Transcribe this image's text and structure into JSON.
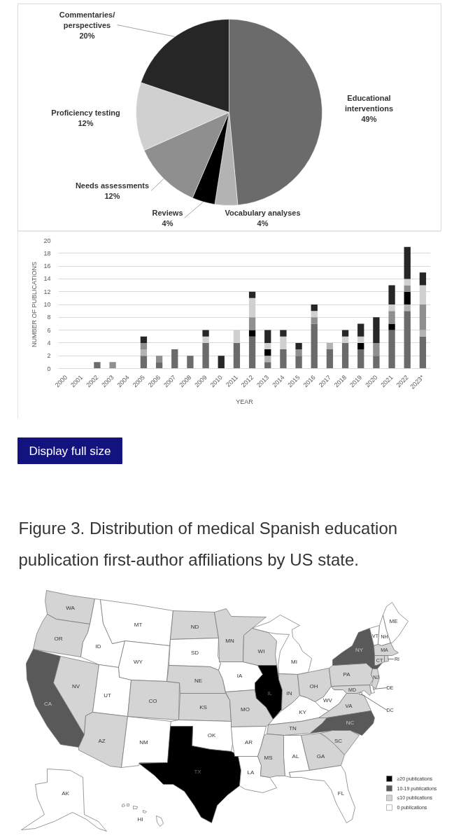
{
  "chart_data": [
    {
      "type": "pie",
      "categories": [
        "Educational interventions",
        "Vocabulary analyses",
        "Reviews",
        "Needs assessments",
        "Proficiency testing",
        "Commentaries/perspectives"
      ],
      "values": [
        49,
        4,
        4,
        12,
        12,
        20
      ],
      "colors": [
        "#6b6b6b",
        "#b3b3b3",
        "#000000",
        "#8f8f8f",
        "#d0d0d0",
        "#262626"
      ],
      "value_labels": [
        "49%",
        "4%",
        "4%",
        "12%",
        "12%",
        "20%"
      ]
    },
    {
      "type": "bar",
      "stacked": true,
      "categories": [
        "2000",
        "2001",
        "2002",
        "2003",
        "2004",
        "2005",
        "2006",
        "2007",
        "2008",
        "2009",
        "2010",
        "2011",
        "2012",
        "2013",
        "2014",
        "2015",
        "2016",
        "2017",
        "2018",
        "2019",
        "2020",
        "2021",
        "2022",
        "2023*"
      ],
      "series": [
        {
          "color": "#6b6b6b",
          "values": [
            0,
            0,
            1,
            0,
            0,
            2,
            1,
            3,
            2,
            4,
            0,
            4,
            5,
            1,
            3,
            2,
            7,
            3,
            4,
            3,
            2,
            6,
            9,
            5
          ]
        },
        {
          "color": "#b3b3b3",
          "values": [
            0,
            0,
            0,
            0,
            0,
            1,
            0,
            0,
            0,
            0,
            0,
            0,
            0,
            1,
            0,
            0,
            0,
            1,
            0,
            0,
            0,
            0,
            1,
            1
          ]
        },
        {
          "color": "#000000",
          "values": [
            0,
            0,
            0,
            0,
            0,
            0,
            0,
            0,
            0,
            0,
            0,
            0,
            1,
            1,
            0,
            0,
            0,
            0,
            0,
            1,
            0,
            1,
            2,
            0
          ]
        },
        {
          "color": "#8f8f8f",
          "values": [
            0,
            0,
            0,
            1,
            0,
            1,
            1,
            0,
            0,
            0,
            0,
            0,
            2,
            0,
            0,
            1,
            1,
            0,
            0,
            0,
            2,
            2,
            1,
            4
          ]
        },
        {
          "color": "#d0d0d0",
          "values": [
            0,
            0,
            0,
            0,
            0,
            0,
            0,
            0,
            0,
            1,
            0,
            2,
            3,
            1,
            2,
            0,
            1,
            0,
            1,
            1,
            0,
            1,
            1,
            3
          ]
        },
        {
          "color": "#262626",
          "values": [
            0,
            0,
            0,
            0,
            0,
            1,
            0,
            0,
            0,
            1,
            2,
            0,
            1,
            2,
            1,
            1,
            1,
            0,
            1,
            2,
            4,
            3,
            5,
            2
          ]
        }
      ],
      "ylim": [
        0,
        20
      ],
      "yticks": [
        0,
        2,
        4,
        6,
        8,
        10,
        12,
        14,
        16,
        18,
        20
      ],
      "xlabel": "YEAR",
      "ylabel": "NUMBER OF PUBLICATIONS",
      "grid": "y",
      "annotations": [
        "Display full size"
      ]
    },
    {
      "type": "other",
      "title": "Figure 3. Distribution of medical Spanish education publication first-author affiliations by US state.",
      "categories": [
        "WA",
        "OR",
        "CA",
        "NV",
        "ID",
        "MT",
        "WY",
        "UT",
        "AZ",
        "NM",
        "CO",
        "ND",
        "SD",
        "NE",
        "KS",
        "OK",
        "TX",
        "MN",
        "IA",
        "MO",
        "AR",
        "LA",
        "WI",
        "IL",
        "MI",
        "IN",
        "KY",
        "TN",
        "MS",
        "AL",
        "OH",
        "WV",
        "VA",
        "NC",
        "SC",
        "GA",
        "FL",
        "PA",
        "NY",
        "NJ",
        "DE",
        "MD",
        "DC",
        "VT",
        "NH",
        "ME",
        "MA",
        "CT",
        "RI",
        "AK",
        "HI"
      ],
      "colors": [
        "#d4d4d4",
        "#d4d4d4",
        "#595959",
        "#d4d4d4",
        "#ffffff",
        "#ffffff",
        "#ffffff",
        "#ffffff",
        "#d4d4d4",
        "#ffffff",
        "#d4d4d4",
        "#d4d4d4",
        "#ffffff",
        "#d4d4d4",
        "#d4d4d4",
        "#ffffff",
        "#000000",
        "#d4d4d4",
        "#ffffff",
        "#d4d4d4",
        "#ffffff",
        "#ffffff",
        "#d4d4d4",
        "#000000",
        "#ffffff",
        "#d4d4d4",
        "#ffffff",
        "#d4d4d4",
        "#d4d4d4",
        "#ffffff",
        "#d4d4d4",
        "#ffffff",
        "#d4d4d4",
        "#595959",
        "#d4d4d4",
        "#d4d4d4",
        "#ffffff",
        "#d4d4d4",
        "#595959",
        "#d4d4d4",
        "#ffffff",
        "#d4d4d4",
        "#ffffff",
        "#ffffff",
        "#ffffff",
        "#ffffff",
        "#d4d4d4",
        "#d4d4d4",
        "#d4d4d4",
        "#ffffff",
        "#ffffff"
      ],
      "series": [
        {
          "name": "≥20 publications",
          "color": "#000000",
          "values": [
            null,
            null,
            null,
            null,
            null,
            null,
            null,
            null,
            null,
            null,
            null,
            null,
            null,
            null,
            null,
            null,
            null,
            null,
            null,
            null,
            null,
            null,
            null,
            null,
            null,
            null,
            null,
            null,
            null,
            null,
            null,
            null,
            null,
            null,
            null,
            null,
            null,
            null,
            null,
            null,
            null,
            null,
            null,
            null,
            null,
            null,
            null,
            null,
            null,
            null,
            null
          ]
        },
        {
          "name": "10-19 publications",
          "color": "#595959",
          "values": [
            null,
            null,
            null,
            null,
            null,
            null,
            null,
            null,
            null,
            null,
            null,
            null,
            null,
            null,
            null,
            null,
            null,
            null,
            null,
            null,
            null,
            null,
            null,
            null,
            null,
            null,
            null,
            null,
            null,
            null,
            null,
            null,
            null,
            null,
            null,
            null,
            null,
            null,
            null,
            null,
            null,
            null,
            null,
            null,
            null,
            null,
            null,
            null,
            null,
            null,
            null
          ]
        },
        {
          "name": "≤10 publications",
          "color": "#d4d4d4",
          "values": [
            null,
            null,
            null,
            null,
            null,
            null,
            null,
            null,
            null,
            null,
            null,
            null,
            null,
            null,
            null,
            null,
            null,
            null,
            null,
            null,
            null,
            null,
            null,
            null,
            null,
            null,
            null,
            null,
            null,
            null,
            null,
            null,
            null,
            null,
            null,
            null,
            null,
            null,
            null,
            null,
            null,
            null,
            null,
            null,
            null,
            null,
            null,
            null,
            null,
            null,
            null
          ]
        },
        {
          "name": "0 publications",
          "color": "#ffffff",
          "values": [
            null,
            null,
            null,
            null,
            null,
            null,
            null,
            null,
            null,
            null,
            null,
            null,
            null,
            null,
            null,
            null,
            null,
            null,
            null,
            null,
            null,
            null,
            null,
            null,
            null,
            null,
            null,
            null,
            null,
            null,
            null,
            null,
            null,
            null,
            null,
            null,
            null,
            null,
            null,
            null,
            null,
            null,
            null,
            null,
            null,
            null,
            null,
            null,
            null,
            null,
            null
          ]
        }
      ],
      "legend": "bottom right"
    }
  ]
}
